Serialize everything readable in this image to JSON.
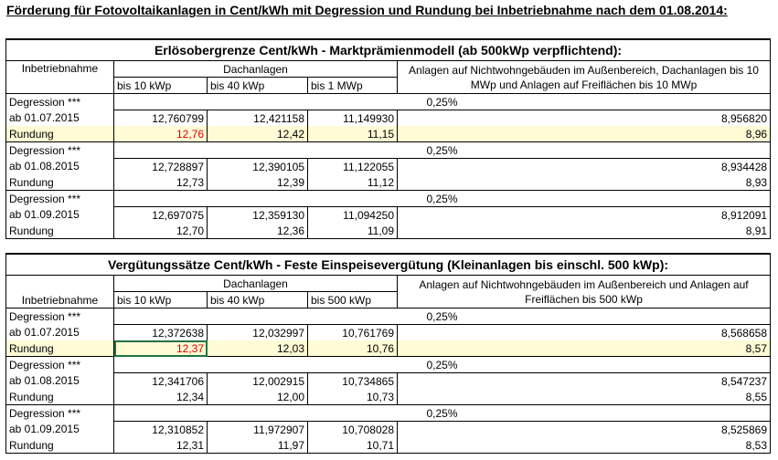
{
  "page_title": "Förderung für Fotovoltaikanlagen in Cent/kWh mit Degression und Rundung bei Inbetriebnahme nach dem 01.08.2014:",
  "table1": {
    "title": "Erlösobergrenze Cent/kWh - Marktprämienmodell (ab 500kWp verpflichtend):",
    "col_inbetriebnahme": "Inbetriebnahme",
    "col_dachanlagen": "Dachanlagen",
    "col_sub": [
      "bis 10 kWp",
      "bis 40 kWp",
      "bis 1 MWp"
    ],
    "col_other": "Anlagen auf Nichtwohngebäuden im Außenbereich, Dachanlagen bis 10 MWp und Anlagen auf Freiflächen bis 10 MWp",
    "blocks": [
      {
        "degression_label": "Degression ***",
        "degression": "0,25%",
        "date_label": "ab 01.07.2015",
        "values": [
          "12,760799",
          "12,421158",
          "11,149930",
          "8,956820"
        ],
        "rund_label": "Rundung",
        "rounded": [
          "12,76",
          "12,42",
          "11,15",
          "8,96"
        ]
      },
      {
        "degression_label": "Degression ***",
        "degression": "0,25%",
        "date_label": "ab 01.08.2015",
        "values": [
          "12,728897",
          "12,390105",
          "11,122055",
          "8,934428"
        ],
        "rund_label": "Rundung",
        "rounded": [
          "12,73",
          "12,39",
          "11,12",
          "8,93"
        ]
      },
      {
        "degression_label": "Degression ***",
        "degression": "0,25%",
        "date_label": "ab 01.09.2015",
        "values": [
          "12,697075",
          "12,359130",
          "11,094250",
          "8,912091"
        ],
        "rund_label": "Rundung",
        "rounded": [
          "12,70",
          "12,36",
          "11,09",
          "8,91"
        ]
      }
    ]
  },
  "table2": {
    "title": "Vergütungssätze Cent/kWh - Feste Einspeisevergütung (Kleinanlagen bis einschl. 500 kWp):",
    "col_inbetriebnahme": "Inbetriebnahme",
    "col_dachanlagen": "Dachanlagen",
    "col_sub": [
      "bis 10 kWp",
      "bis 40 kWp",
      "bis 500 kWp"
    ],
    "col_other": "Anlagen auf Nichtwohngebäuden im Außenbereich und Anlagen auf Freiflächen bis 500 kWp",
    "blocks": [
      {
        "degression_label": "Degression ***",
        "degression": "0,25%",
        "date_label": "ab 01.07.2015",
        "values": [
          "12,372638",
          "12,032997",
          "10,761769",
          "8,568658"
        ],
        "rund_label": "Rundung",
        "rounded": [
          "12,37",
          "12,03",
          "10,76",
          "8,57"
        ]
      },
      {
        "degression_label": "Degression ***",
        "degression": "0,25%",
        "date_label": "ab 01.08.2015",
        "values": [
          "12,341706",
          "12,002915",
          "10,734865",
          "8,547237"
        ],
        "rund_label": "Rundung",
        "rounded": [
          "12,34",
          "12,00",
          "10,73",
          "8,55"
        ]
      },
      {
        "degression_label": "Degression ***",
        "degression": "0,25%",
        "date_label": "ab 01.09.2015",
        "values": [
          "12,310852",
          "11,972907",
          "10,708028",
          "8,525869"
        ],
        "rund_label": "Rundung",
        "rounded": [
          "12,31",
          "11,97",
          "10,71",
          "8,53"
        ]
      }
    ]
  },
  "colors": {
    "highlight_row": "#fffbd4",
    "red_value": "#e00000",
    "selection": "#217346"
  }
}
